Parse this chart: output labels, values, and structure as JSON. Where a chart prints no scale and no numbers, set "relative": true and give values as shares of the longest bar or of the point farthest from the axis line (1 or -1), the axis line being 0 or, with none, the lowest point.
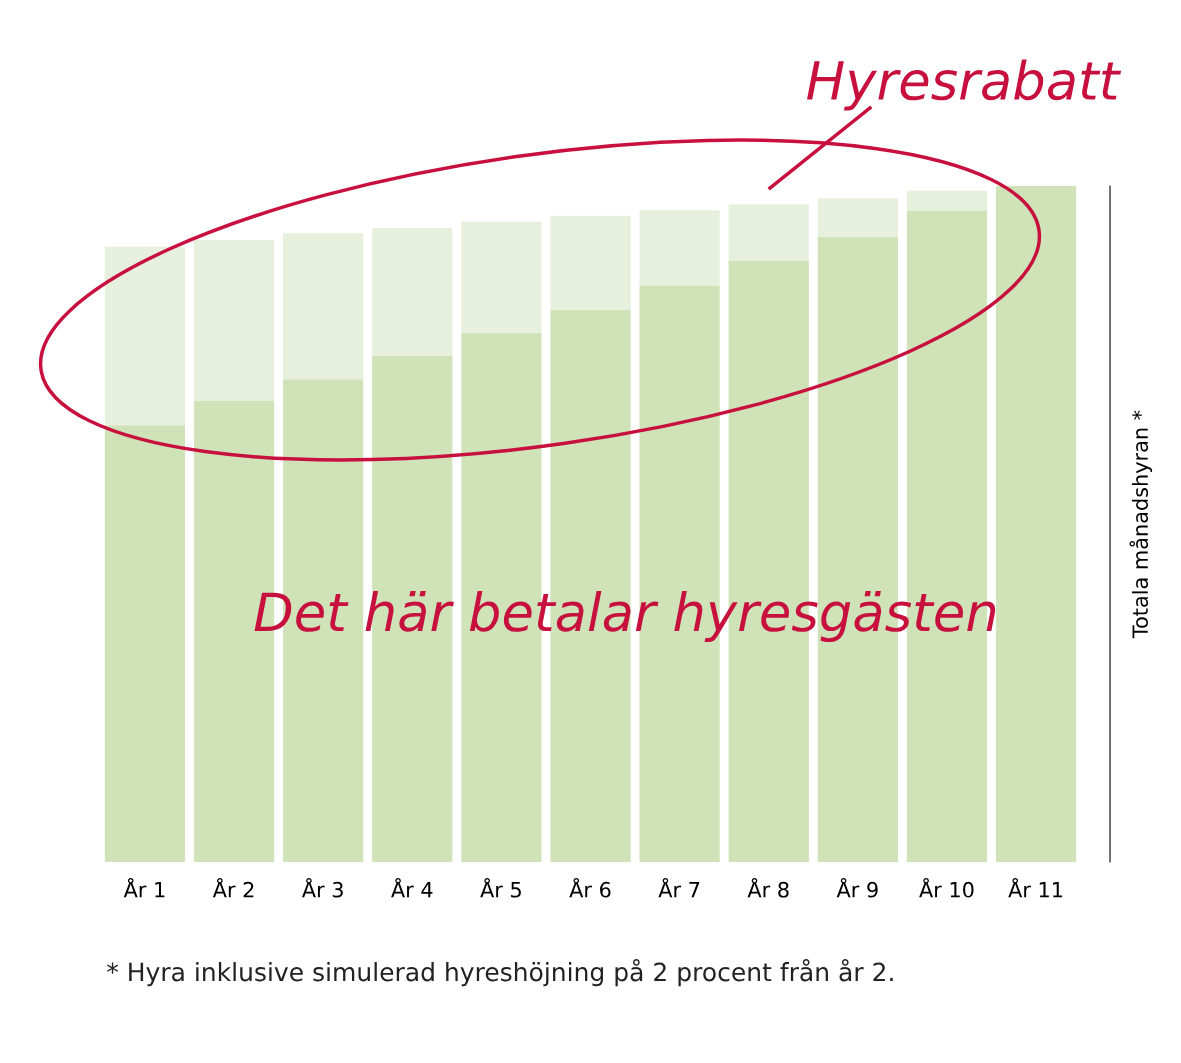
{
  "chart_data": {
    "type": "bar",
    "stacked": true,
    "relative": true,
    "tick_labels": "x",
    "grid": false,
    "legend": false,
    "categories": [
      "År 1",
      "År 2",
      "År 3",
      "År 4",
      "År 5",
      "År 6",
      "År 7",
      "År 8",
      "År 9",
      "År 10",
      "År 11"
    ],
    "series": [
      {
        "color": "#cfe2b8",
        "values": [
          0.646,
          0.682,
          0.714,
          0.749,
          0.783,
          0.817,
          0.852,
          0.889,
          0.925,
          0.963,
          1.0
        ]
      },
      {
        "color": "#e7f0dc",
        "values": [
          0.264,
          0.238,
          0.216,
          0.189,
          0.164,
          0.139,
          0.112,
          0.084,
          0.057,
          0.03,
          0.0
        ]
      }
    ],
    "ylabel": "Totala månadshyran *",
    "annotations": [
      "Hyresrabatt",
      "Det här betalar hyresgästen",
      "* Hyra inklusive simulerad hyreshöjning på 2 procent från år 2."
    ]
  }
}
